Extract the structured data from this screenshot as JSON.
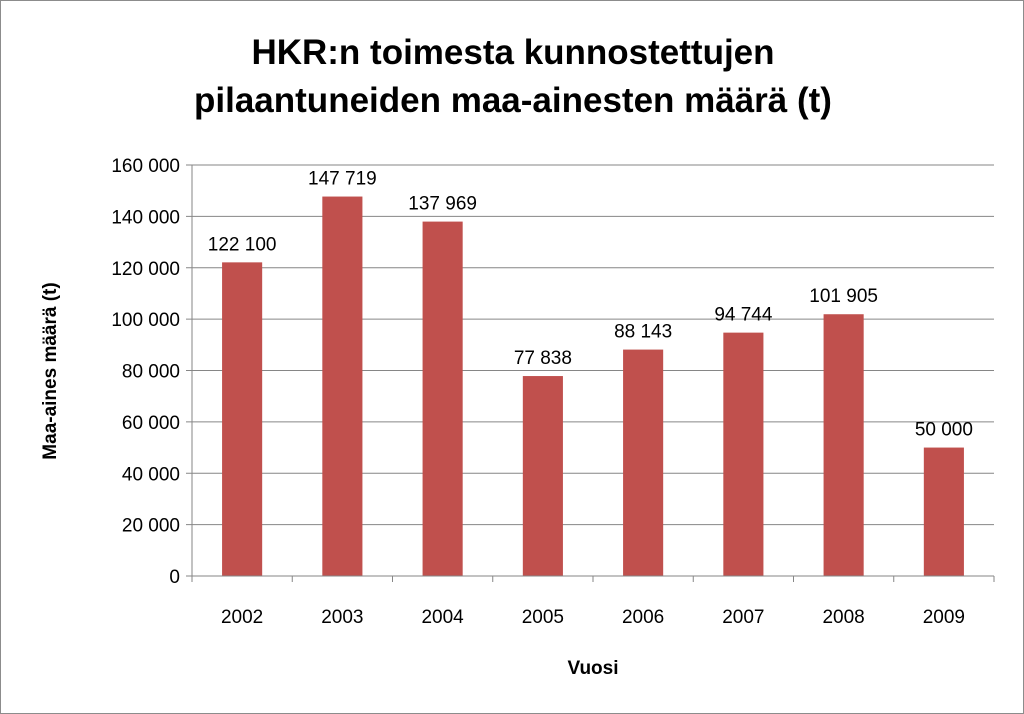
{
  "chart_data": {
    "type": "bar",
    "title_lines": [
      "HKR:n toimesta kunnostettujen",
      "pilaantuneiden maa-ainesten määrä (t)"
    ],
    "title": "HKR:n toimesta kunnostettujen pilaantuneiden maa-ainesten määrä (t)",
    "xlabel": "Vuosi",
    "ylabel": "Maa-aines määrä (t)",
    "categories": [
      "2002",
      "2003",
      "2004",
      "2005",
      "2006",
      "2007",
      "2008",
      "2009"
    ],
    "values": [
      122100,
      147719,
      137969,
      77838,
      88143,
      94744,
      101905,
      50000
    ],
    "value_labels": [
      "122 100",
      "147 719",
      "137 969",
      "77 838",
      "88 143",
      "94 744",
      "101 905",
      "50 000"
    ],
    "yticks": [
      0,
      20000,
      40000,
      60000,
      80000,
      100000,
      120000,
      140000,
      160000
    ],
    "ytick_labels": [
      "0",
      "20 000",
      "40 000",
      "60 000",
      "80 000",
      "100 000",
      "120 000",
      "140 000",
      "160 000"
    ],
    "ylim": [
      0,
      160000
    ],
    "grid": true,
    "legend": "none",
    "colors": {
      "bar": "#c0504d",
      "grid": "#868686",
      "axis": "#868686"
    }
  }
}
